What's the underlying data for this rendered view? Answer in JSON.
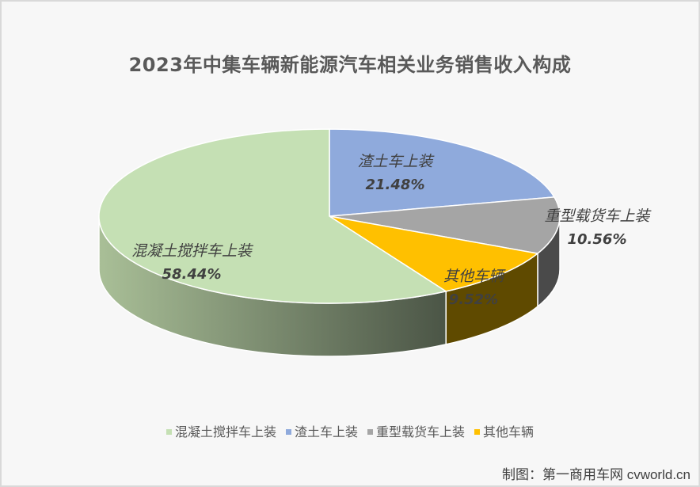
{
  "chart_data": {
    "type": "pie",
    "variant": "3d-pie",
    "title": "2023年中集车辆新能源汽车相关业务销售收入构成",
    "categories": [
      "渣土车上装",
      "重型载货车上装",
      "其他车辆",
      "混凝土搅拌车上装"
    ],
    "values": [
      21.48,
      10.56,
      9.52,
      58.44
    ],
    "unit": "%",
    "data_labels": [
      "渣土车上装 21.48%",
      "重型载货车上装 10.56%",
      "其他车辆 9.52%",
      "混凝土搅拌车上装 58.44%"
    ],
    "legend": [
      "混凝土搅拌车上装",
      "渣土车上装",
      "重型载货车上装",
      "其他车辆"
    ],
    "legend_position": "bottom",
    "start_angle": "12 o'clock, clockwise"
  },
  "colors": {
    "渣土车上装": "#8faadc",
    "重型载货车上装": "#a5a5a5",
    "其他车辆": "#ffc000",
    "混凝土搅拌车上装": "#c5e0b4"
  },
  "side_colors": {
    "渣土车上装": "#4a5a78",
    "重型载货车上装": "#4a4a4a",
    "其他车辆": "#5f4a00",
    "混凝土搅拌车上装": [
      "#a9bf97",
      "#4b5546"
    ]
  },
  "labels": {
    "slice_0": {
      "name": "渣土车上装",
      "pct": "21.48%"
    },
    "slice_1": {
      "name": "重型载货车上装",
      "pct": "10.56%"
    },
    "slice_2": {
      "name": "其他车辆",
      "pct": "9.52%"
    },
    "slice_3": {
      "name": "混凝土搅拌车上装",
      "pct": "58.44%"
    }
  },
  "legend_items": [
    {
      "label": "混凝土搅拌车上装",
      "color": "#c5e0b4"
    },
    {
      "label": "渣土车上装",
      "color": "#8faadc"
    },
    {
      "label": "重型载货车上装",
      "color": "#a5a5a5"
    },
    {
      "label": "其他车辆",
      "color": "#ffc000"
    }
  ],
  "credit": "制图：第一商用车网 cvworld.cn"
}
